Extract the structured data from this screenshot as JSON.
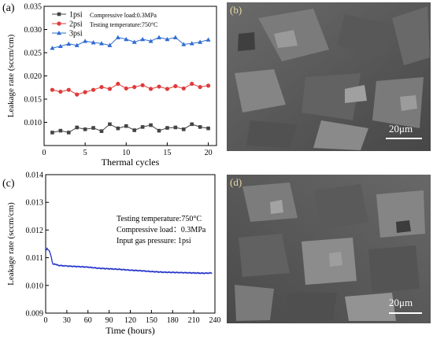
{
  "panels": {
    "a": "(a)",
    "b": "(b)",
    "c": "(c)",
    "d": "(d)"
  },
  "sem": {
    "b_scale": "20μm",
    "d_scale": "20μm"
  },
  "chart_data": [
    {
      "panel": "(a)",
      "type": "line",
      "xlabel": "Thermal cycles",
      "ylabel": "Leakage rate (sccm/cm)",
      "xlim": [
        0,
        21
      ],
      "ylim": [
        0.005,
        0.035
      ],
      "xticks": [
        0,
        5,
        10,
        15,
        20
      ],
      "yticks": [
        "0.010",
        "0.015",
        "0.020",
        "0.025",
        "0.030",
        "0.035"
      ],
      "annotations": [
        "Compressive load:0.3MPa",
        "Testing temperature:750°C"
      ],
      "legend": "top-left",
      "x": [
        1,
        2,
        3,
        4,
        5,
        6,
        7,
        8,
        9,
        10,
        11,
        12,
        13,
        14,
        15,
        16,
        17,
        18,
        19,
        20
      ],
      "series": [
        {
          "name": "1psi",
          "color": "#444444",
          "marker": "square",
          "values": [
            0.0078,
            0.0082,
            0.0078,
            0.0089,
            0.0085,
            0.0088,
            0.0081,
            0.0096,
            0.0087,
            0.0092,
            0.0083,
            0.009,
            0.0094,
            0.0082,
            0.0088,
            0.0089,
            0.0085,
            0.0096,
            0.009,
            0.0087
          ]
        },
        {
          "name": "2psi",
          "color": "#e03a3a",
          "marker": "circle",
          "values": [
            0.017,
            0.0166,
            0.017,
            0.016,
            0.0165,
            0.017,
            0.0176,
            0.0172,
            0.0183,
            0.0173,
            0.0176,
            0.018,
            0.0172,
            0.0177,
            0.0172,
            0.0178,
            0.0173,
            0.0183,
            0.0176,
            0.0179
          ]
        },
        {
          "name": "3psi",
          "color": "#2f6bd1",
          "marker": "triangle",
          "values": [
            0.026,
            0.0264,
            0.0269,
            0.0266,
            0.0275,
            0.0272,
            0.027,
            0.0266,
            0.0283,
            0.0279,
            0.0273,
            0.0279,
            0.0275,
            0.0283,
            0.0279,
            0.0283,
            0.0268,
            0.027,
            0.0273,
            0.0278
          ]
        }
      ]
    },
    {
      "panel": "(c)",
      "type": "line",
      "xlabel": "Time (hours)",
      "ylabel": "Leakage rate (sccm/cm)",
      "xlim": [
        0,
        240
      ],
      "ylim": [
        0.009,
        0.014
      ],
      "xticks": [
        0,
        30,
        60,
        90,
        120,
        150,
        180,
        210,
        240
      ],
      "yticks": [
        "0.009",
        "0.010",
        "0.011",
        "0.012",
        "0.013",
        "0.014"
      ],
      "annotations": [
        "Testing temperature:750°C",
        "Compressive load：0.3MPa",
        "Input gas pressure: 1psi"
      ],
      "series": [
        {
          "color": "#1f2fc8",
          "x": [
            0,
            2,
            4,
            6,
            8,
            10,
            15,
            20,
            30,
            45,
            60,
            75,
            90,
            105,
            120,
            135,
            150,
            165,
            180,
            195,
            210,
            225,
            236
          ],
          "values": [
            0.01125,
            0.01133,
            0.01128,
            0.0112,
            0.011,
            0.01078,
            0.01075,
            0.01072,
            0.0107,
            0.01068,
            0.01066,
            0.01062,
            0.0106,
            0.01058,
            0.01055,
            0.01053,
            0.0105,
            0.01048,
            0.01047,
            0.01046,
            0.01045,
            0.01044,
            0.01045
          ]
        }
      ]
    }
  ]
}
